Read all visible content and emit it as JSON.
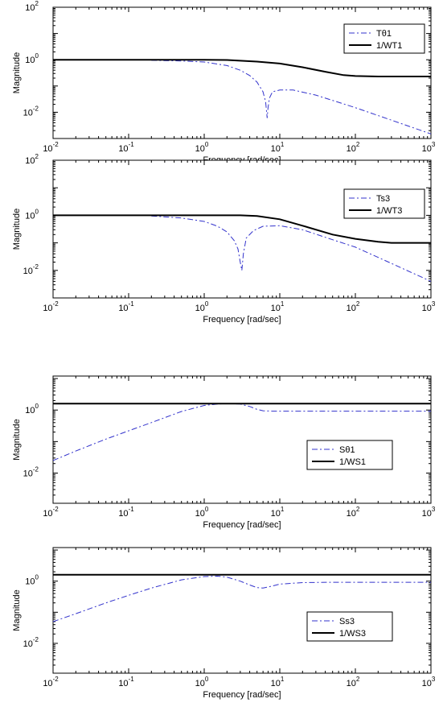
{
  "chart_data": [
    {
      "type": "line",
      "xscale": "log",
      "yscale": "log",
      "xlim": [
        0.01,
        1000
      ],
      "ylim": [
        0.001,
        100
      ],
      "xlabel": "Frequency [rad/sec]",
      "ylabel": "Magnitude",
      "xticks": [
        {
          "base": "10",
          "exp": "-2"
        },
        {
          "base": "10",
          "exp": "-1"
        },
        {
          "base": "10",
          "exp": "0"
        },
        {
          "base": "10",
          "exp": "1"
        },
        {
          "base": "10",
          "exp": "2"
        },
        {
          "base": "10",
          "exp": "3"
        }
      ],
      "yticks": [
        {
          "base": "10",
          "exp": "2"
        },
        {
          "base": "10",
          "exp": "0"
        },
        {
          "base": "10",
          "exp": "-2"
        }
      ],
      "legend_position": "top-right",
      "series": [
        {
          "name": "Tθ1",
          "style": "dash-dot",
          "color": "#3333cc",
          "x": [
            0.2,
            0.5,
            1,
            2,
            3,
            4,
            5,
            6,
            6.5,
            6.8,
            7,
            7.3,
            8,
            10,
            15,
            30,
            100,
            300,
            1000
          ],
          "y": [
            0.95,
            0.9,
            0.82,
            0.6,
            0.4,
            0.25,
            0.14,
            0.06,
            0.025,
            0.006,
            0.015,
            0.035,
            0.06,
            0.07,
            0.07,
            0.045,
            0.015,
            0.005,
            0.0015
          ]
        },
        {
          "name": "1/WT1",
          "style": "solid",
          "color": "#000000",
          "x": [
            0.01,
            0.1,
            1,
            2,
            3,
            5,
            10,
            20,
            40,
            70,
            100,
            200,
            1000
          ],
          "y": [
            1.0,
            1.0,
            1.0,
            0.98,
            0.92,
            0.85,
            0.72,
            0.52,
            0.35,
            0.26,
            0.24,
            0.23,
            0.23
          ]
        }
      ]
    },
    {
      "type": "line",
      "xscale": "log",
      "yscale": "log",
      "xlim": [
        0.01,
        1000
      ],
      "ylim": [
        0.001,
        100
      ],
      "xlabel": "Frequency [rad/sec]",
      "ylabel": "Magnitude",
      "xticks": [
        {
          "base": "10",
          "exp": "-2"
        },
        {
          "base": "10",
          "exp": "-1"
        },
        {
          "base": "10",
          "exp": "0"
        },
        {
          "base": "10",
          "exp": "1"
        },
        {
          "base": "10",
          "exp": "2"
        },
        {
          "base": "10",
          "exp": "3"
        }
      ],
      "yticks": [
        {
          "base": "10",
          "exp": "2"
        },
        {
          "base": "10",
          "exp": "0"
        },
        {
          "base": "10",
          "exp": "-2"
        }
      ],
      "legend_position": "top-right",
      "series": [
        {
          "name": "Ts3",
          "style": "dash-dot",
          "color": "#3333cc",
          "x": [
            0.2,
            0.5,
            1,
            1.5,
            2,
            2.5,
            2.8,
            3.0,
            3.15,
            3.3,
            3.6,
            4.5,
            6,
            10,
            20,
            50,
            100,
            300,
            1000
          ],
          "y": [
            0.95,
            0.8,
            0.6,
            0.4,
            0.25,
            0.12,
            0.06,
            0.02,
            0.01,
            0.04,
            0.15,
            0.28,
            0.4,
            0.42,
            0.3,
            0.13,
            0.07,
            0.018,
            0.004
          ]
        },
        {
          "name": "1/WT3",
          "style": "solid",
          "color": "#000000",
          "x": [
            0.01,
            0.1,
            1,
            3,
            5,
            10,
            20,
            50,
            100,
            200,
            300,
            500,
            1000
          ],
          "y": [
            1.0,
            1.0,
            1.0,
            1.0,
            0.95,
            0.72,
            0.42,
            0.2,
            0.14,
            0.11,
            0.1,
            0.1,
            0.1
          ]
        }
      ]
    },
    {
      "type": "line",
      "xscale": "log",
      "yscale": "log",
      "xlim": [
        0.01,
        1000
      ],
      "ylim": [
        0.0011,
        12
      ],
      "xlabel": "Frequency [rad/sec]",
      "ylabel": "Magnitude",
      "xticks": [
        {
          "base": "10",
          "exp": "-2"
        },
        {
          "base": "10",
          "exp": "-1"
        },
        {
          "base": "10",
          "exp": "0"
        },
        {
          "base": "10",
          "exp": "1"
        },
        {
          "base": "10",
          "exp": "2"
        },
        {
          "base": "10",
          "exp": "3"
        }
      ],
      "yticks": [
        {
          "base": "10",
          "exp": "0"
        },
        {
          "base": "10",
          "exp": "-2"
        }
      ],
      "legend_position": "center-right",
      "series": [
        {
          "name": "Sθ1",
          "style": "dash-dot",
          "color": "#3333cc",
          "x": [
            0.01,
            0.02,
            0.05,
            0.1,
            0.2,
            0.5,
            1,
            1.5,
            2,
            3,
            4,
            5,
            6,
            8,
            10,
            30,
            100,
            1000
          ],
          "y": [
            0.025,
            0.05,
            0.12,
            0.22,
            0.4,
            0.9,
            1.4,
            1.55,
            1.6,
            1.55,
            1.3,
            1.05,
            0.95,
            0.92,
            0.92,
            0.92,
            0.92,
            0.92
          ]
        },
        {
          "name": "1/WS1",
          "style": "solid",
          "color": "#000000",
          "x": [
            0.01,
            1000
          ],
          "y": [
            1.6,
            1.6
          ]
        }
      ]
    },
    {
      "type": "line",
      "xscale": "log",
      "yscale": "log",
      "xlim": [
        0.01,
        1000
      ],
      "ylim": [
        0.0011,
        12
      ],
      "xlabel": "Frequency [rad/sec]",
      "ylabel": "Magnitude",
      "xticks": [
        {
          "base": "10",
          "exp": "-2"
        },
        {
          "base": "10",
          "exp": "-1"
        },
        {
          "base": "10",
          "exp": "0"
        },
        {
          "base": "10",
          "exp": "1"
        },
        {
          "base": "10",
          "exp": "2"
        },
        {
          "base": "10",
          "exp": "3"
        }
      ],
      "yticks": [
        {
          "base": "10",
          "exp": "0"
        },
        {
          "base": "10",
          "exp": "-2"
        }
      ],
      "legend_position": "center-right",
      "series": [
        {
          "name": "Ss3",
          "style": "dash-dot",
          "color": "#3333cc",
          "x": [
            0.01,
            0.02,
            0.05,
            0.1,
            0.2,
            0.5,
            1,
            1.5,
            2,
            3,
            4,
            5,
            6,
            8,
            10,
            20,
            50,
            100,
            1000
          ],
          "y": [
            0.05,
            0.09,
            0.2,
            0.35,
            0.6,
            1.1,
            1.4,
            1.45,
            1.35,
            1.0,
            0.75,
            0.62,
            0.6,
            0.7,
            0.8,
            0.9,
            0.92,
            0.92,
            0.92
          ]
        },
        {
          "name": "1/WS3",
          "style": "solid",
          "color": "#000000",
          "x": [
            0.01,
            1000
          ],
          "y": [
            1.6,
            1.6
          ]
        }
      ]
    }
  ]
}
